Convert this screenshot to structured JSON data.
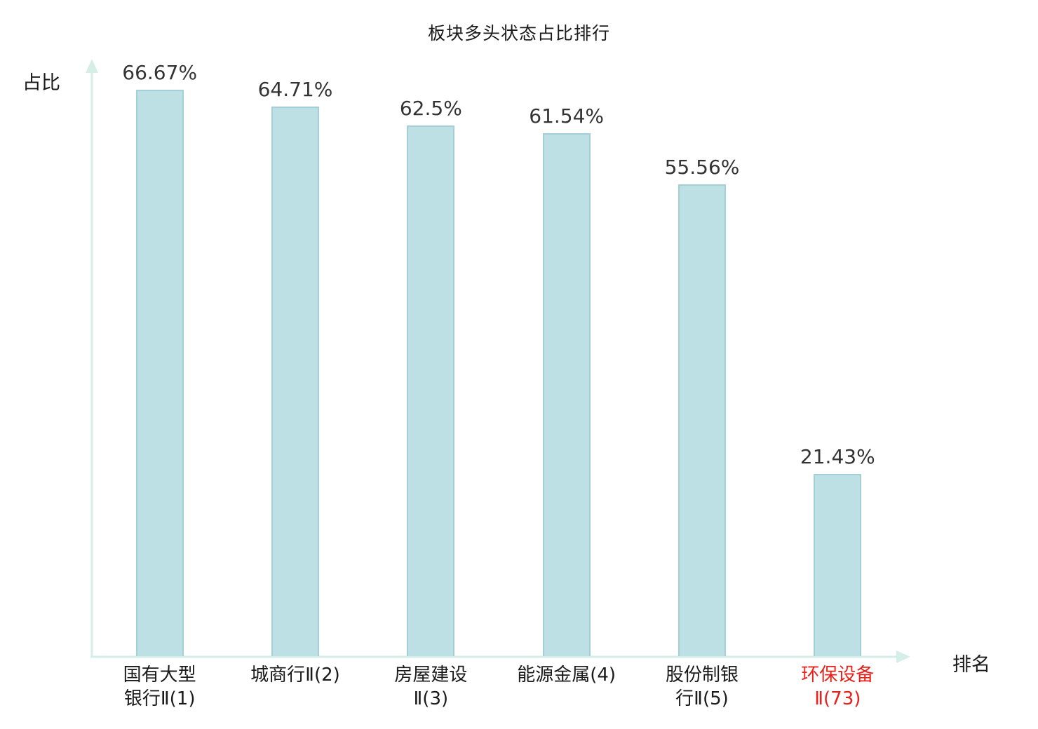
{
  "chart_data": {
    "type": "bar",
    "title": "板块多头状态占比排行",
    "xlabel": "排名",
    "ylabel": "占比",
    "categories": [
      "国有大型银行Ⅱ(1)",
      "城商行Ⅱ(2)",
      "房屋建设Ⅱ(3)",
      "能源金属(4)",
      "股份制银行Ⅱ(5)",
      "环保设备Ⅱ(73)"
    ],
    "category_lines": [
      [
        "国有大型",
        "银行Ⅱ(1)"
      ],
      [
        "城商行Ⅱ(2)"
      ],
      [
        "房屋建设",
        "Ⅱ(3)"
      ],
      [
        "能源金属(4)"
      ],
      [
        "股份制银",
        "行Ⅱ(5)"
      ],
      [
        "环保设备",
        "Ⅱ(73)"
      ]
    ],
    "values": [
      66.67,
      64.71,
      62.5,
      61.54,
      55.56,
      21.43
    ],
    "value_labels": [
      "66.67%",
      "64.71%",
      "62.5%",
      "61.54%",
      "55.56%",
      "21.43%"
    ],
    "highlight_index": 5,
    "highlight_color": "#e8211a",
    "bar_fill": "#bde0e5",
    "bar_border": "#a5cfd7",
    "axis_color": "#d5eee7",
    "text_color": "#333333",
    "ylim": [
      0,
      70
    ],
    "grid": false,
    "legend": false
  }
}
